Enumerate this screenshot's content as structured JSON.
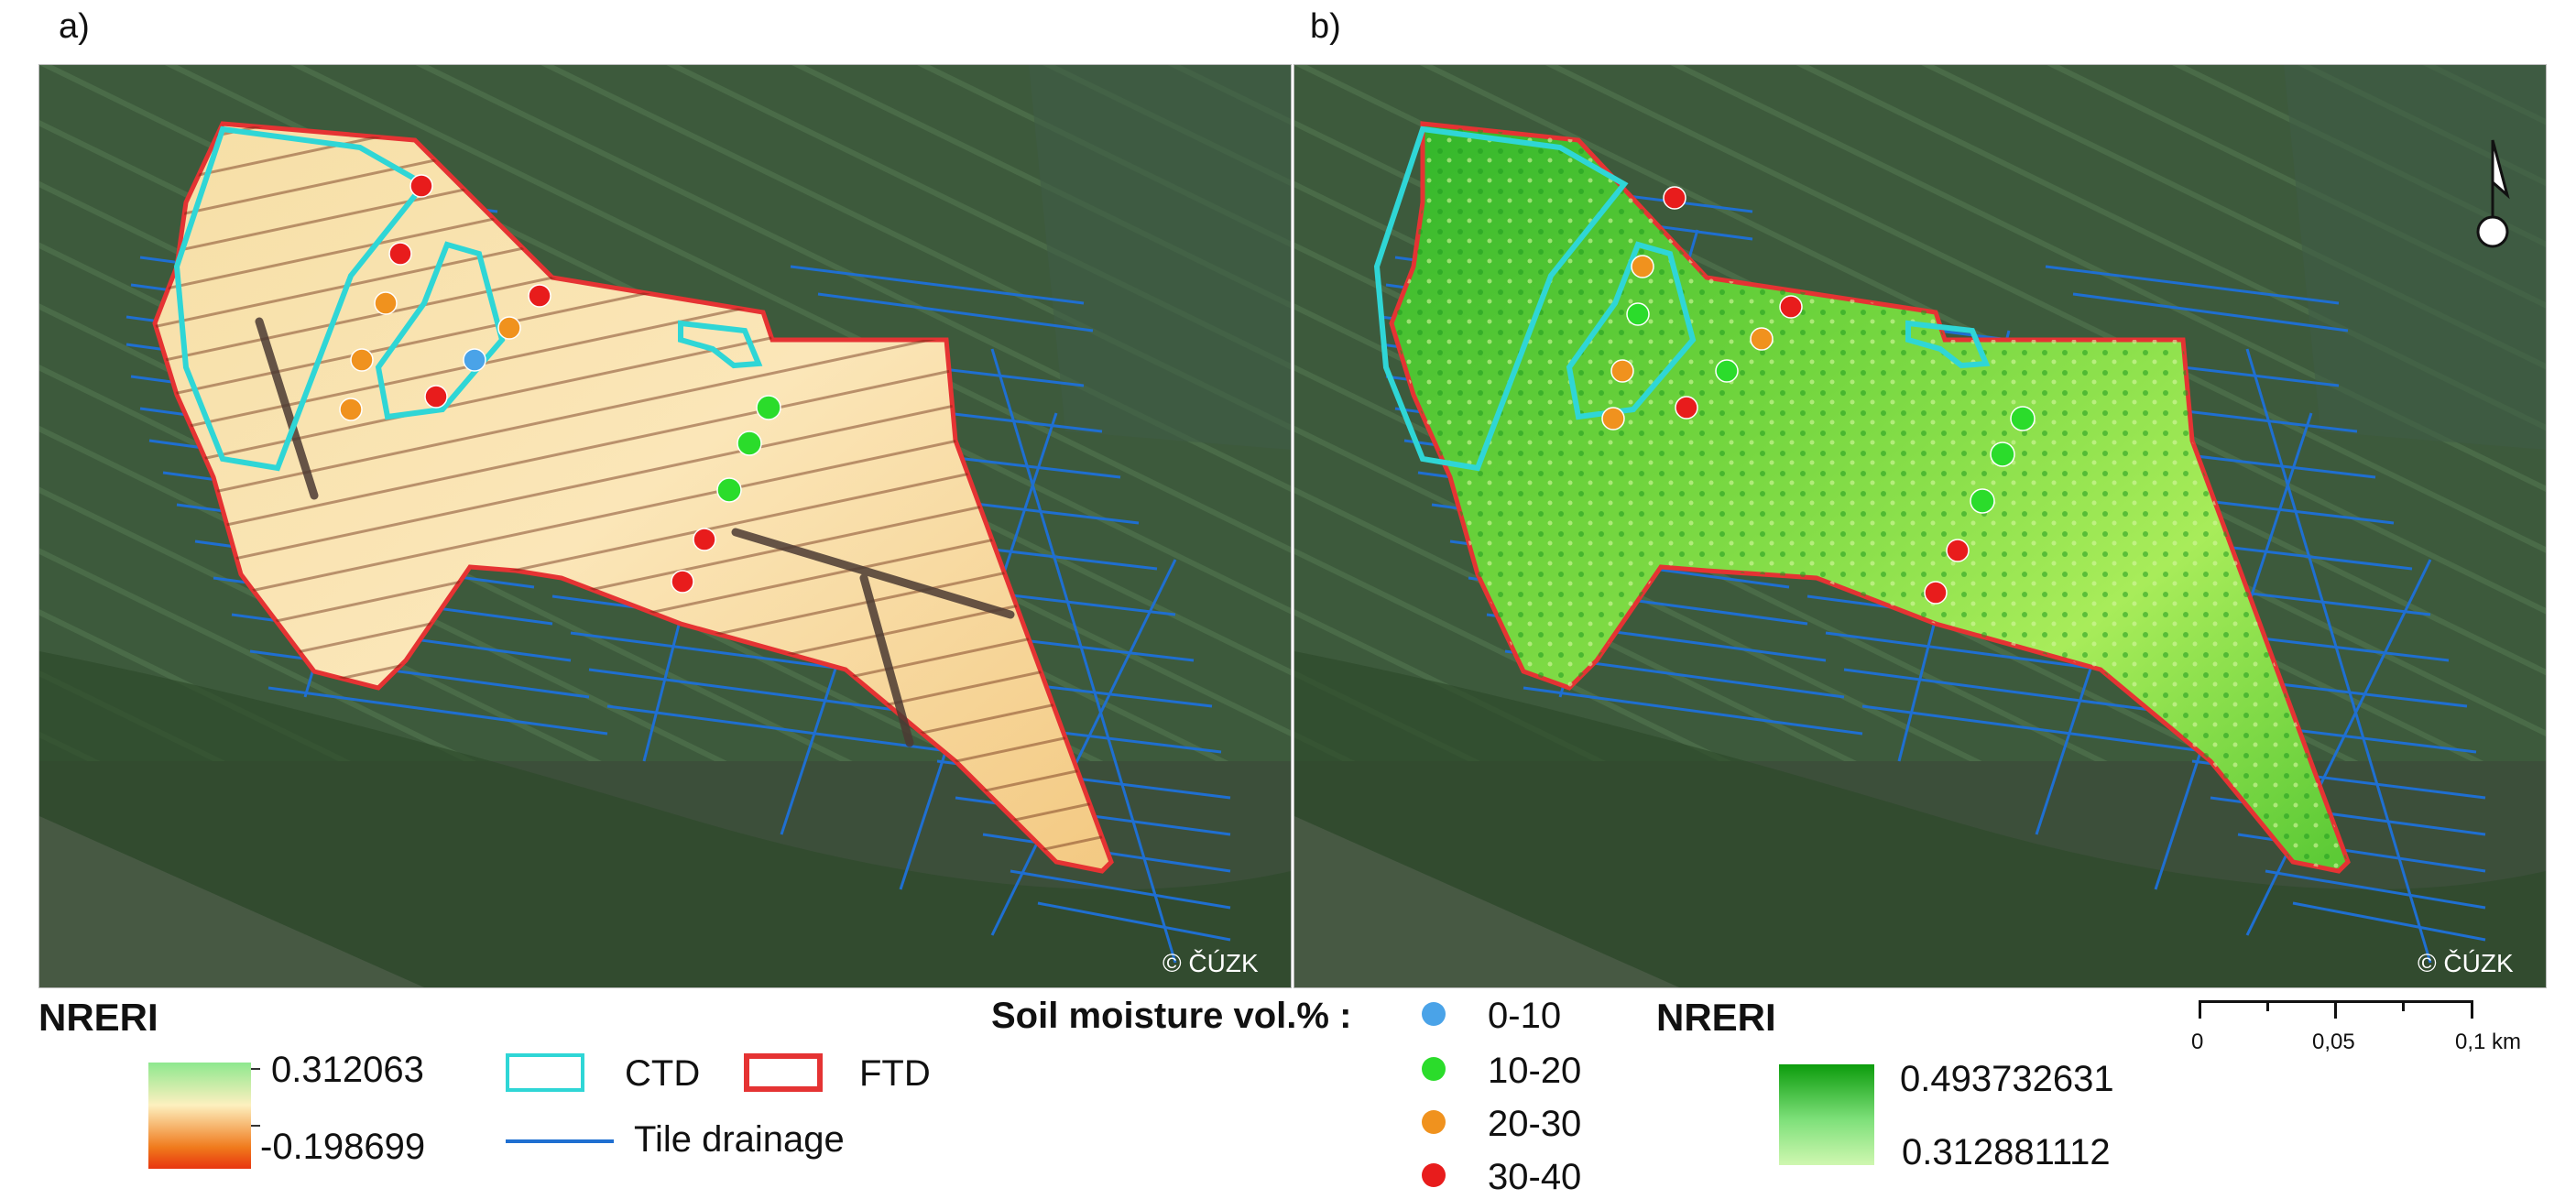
{
  "panels": [
    {
      "label": "a)",
      "copyright": "© ČÚZK"
    },
    {
      "label": "b)",
      "copyright": "© ČÚZK"
    }
  ],
  "legend_left": {
    "title": "NRERI",
    "max_value": "0.312063",
    "min_value": "-0.198699",
    "ramp_colors": [
      "#8ee88e",
      "#fdf0bf",
      "#f07a1c",
      "#e8350f"
    ]
  },
  "boundary_legend": {
    "ctd_label": "CTD",
    "ftd_label": "FTD",
    "tile_label": "Tile drainage",
    "ctd_color": "#2fd6d6",
    "ftd_color": "#e53333",
    "tile_color": "#1f6fd1"
  },
  "soil_moisture": {
    "title": "Soil moisture vol.% :",
    "classes": [
      {
        "label": "0-10",
        "color": "#4aa3e8"
      },
      {
        "label": "10-20",
        "color": "#2bdc2b"
      },
      {
        "label": "20-30",
        "color": "#f0921e"
      },
      {
        "label": "30-40",
        "color": "#e81c1c"
      }
    ]
  },
  "legend_right": {
    "title": "NRERI",
    "max_value": "0.493732631",
    "min_value": "0.312881112",
    "ramp_colors": [
      "#0c9c0c",
      "#cff7b0"
    ]
  },
  "scale_bar": {
    "ticks": [
      "0",
      "0,05",
      "0,1 km"
    ]
  },
  "north_arrow": {
    "icon": "north-arrow-icon"
  }
}
